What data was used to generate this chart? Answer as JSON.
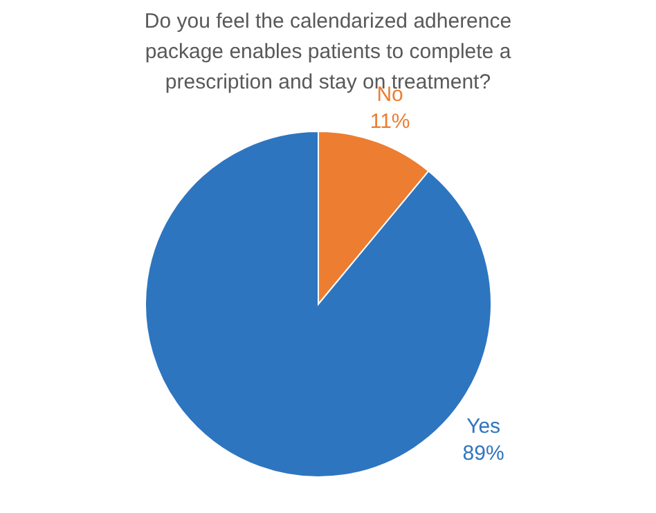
{
  "chart_data": {
    "type": "pie",
    "title": "Do you feel the calendarized adherence\npackage enables patients to complete a\nprescription and stay on treatment?",
    "categories": [
      "No",
      "Yes"
    ],
    "values": [
      11,
      89
    ],
    "value_labels": [
      "11%",
      "89%"
    ],
    "colors": [
      "#ed7d31",
      "#2e75c0"
    ]
  }
}
